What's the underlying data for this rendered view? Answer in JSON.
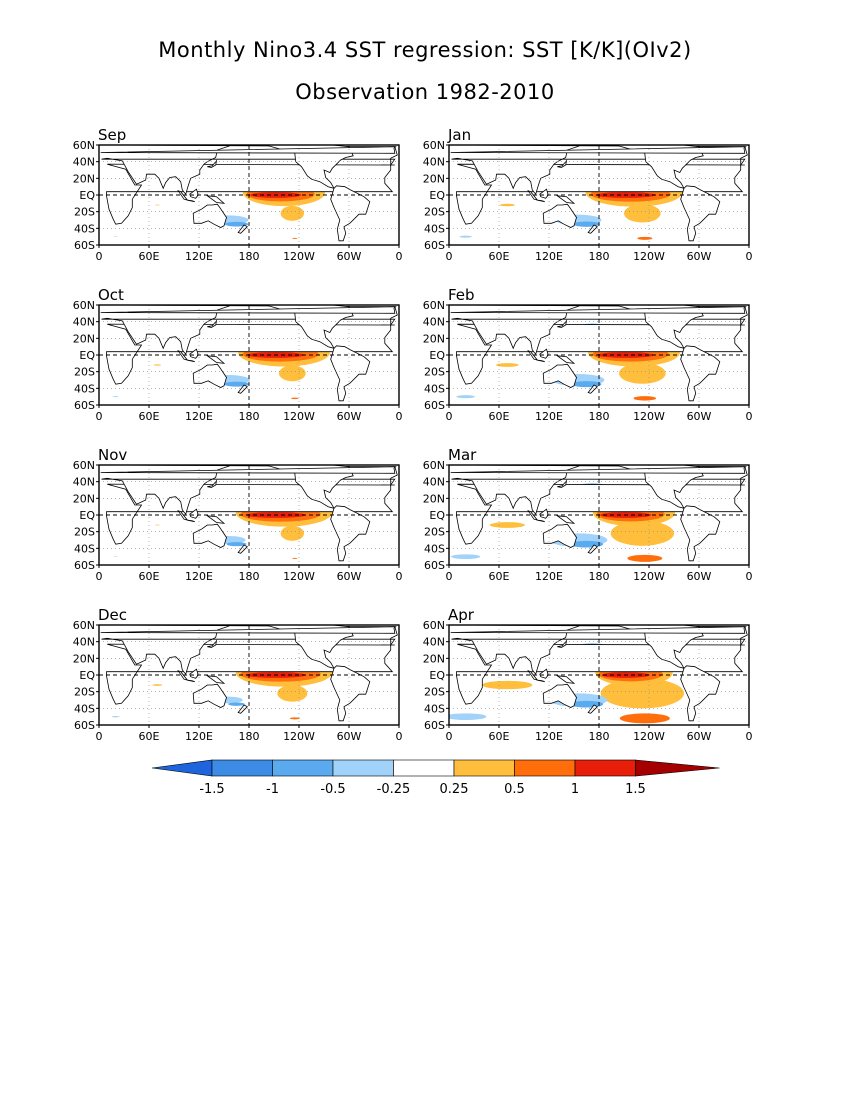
{
  "title_line1": "Monthly Nino3.4 SST regression: SST [K/K](OIv2)",
  "title_line2": "Observation 1982-2010",
  "y_ticks": [
    "60N",
    "40N",
    "20N",
    "EQ",
    "20S",
    "40S",
    "60S"
  ],
  "x_ticks": [
    "0",
    "60E",
    "120E",
    "180",
    "120W",
    "60W",
    "0"
  ],
  "colors": {
    "c1": "#1e64dc",
    "c2": "#3c8ce6",
    "c3": "#5aaaf0",
    "c4": "#a0d2fa",
    "c5": "#ffffff",
    "c6": "#ffbe3c",
    "c7": "#ff6e0a",
    "c8": "#e61e0a",
    "c9": "#a50000"
  },
  "colorbar": {
    "labels": [
      "-1.5",
      "-1",
      "-0.5",
      "-0.25",
      "0.25",
      "0.5",
      "1",
      "1.5"
    ]
  },
  "panels": [
    {
      "month": "Sep",
      "strength": 0.85,
      "blue": 0.7,
      "extra": 0.1
    },
    {
      "month": "Jan",
      "strength": 1.0,
      "blue": 0.8,
      "extra": 0.3
    },
    {
      "month": "Oct",
      "strength": 0.95,
      "blue": 0.75,
      "extra": 0.15
    },
    {
      "month": "Feb",
      "strength": 0.95,
      "blue": 0.9,
      "extra": 0.45
    },
    {
      "month": "Nov",
      "strength": 1.0,
      "blue": 0.6,
      "extra": 0.1
    },
    {
      "month": "Mar",
      "strength": 0.85,
      "blue": 1.0,
      "extra": 0.7
    },
    {
      "month": "Dec",
      "strength": 1.0,
      "blue": 0.5,
      "extra": 0.2
    },
    {
      "month": "Apr",
      "strength": 0.8,
      "blue": 1.0,
      "extra": 1.0
    }
  ]
}
